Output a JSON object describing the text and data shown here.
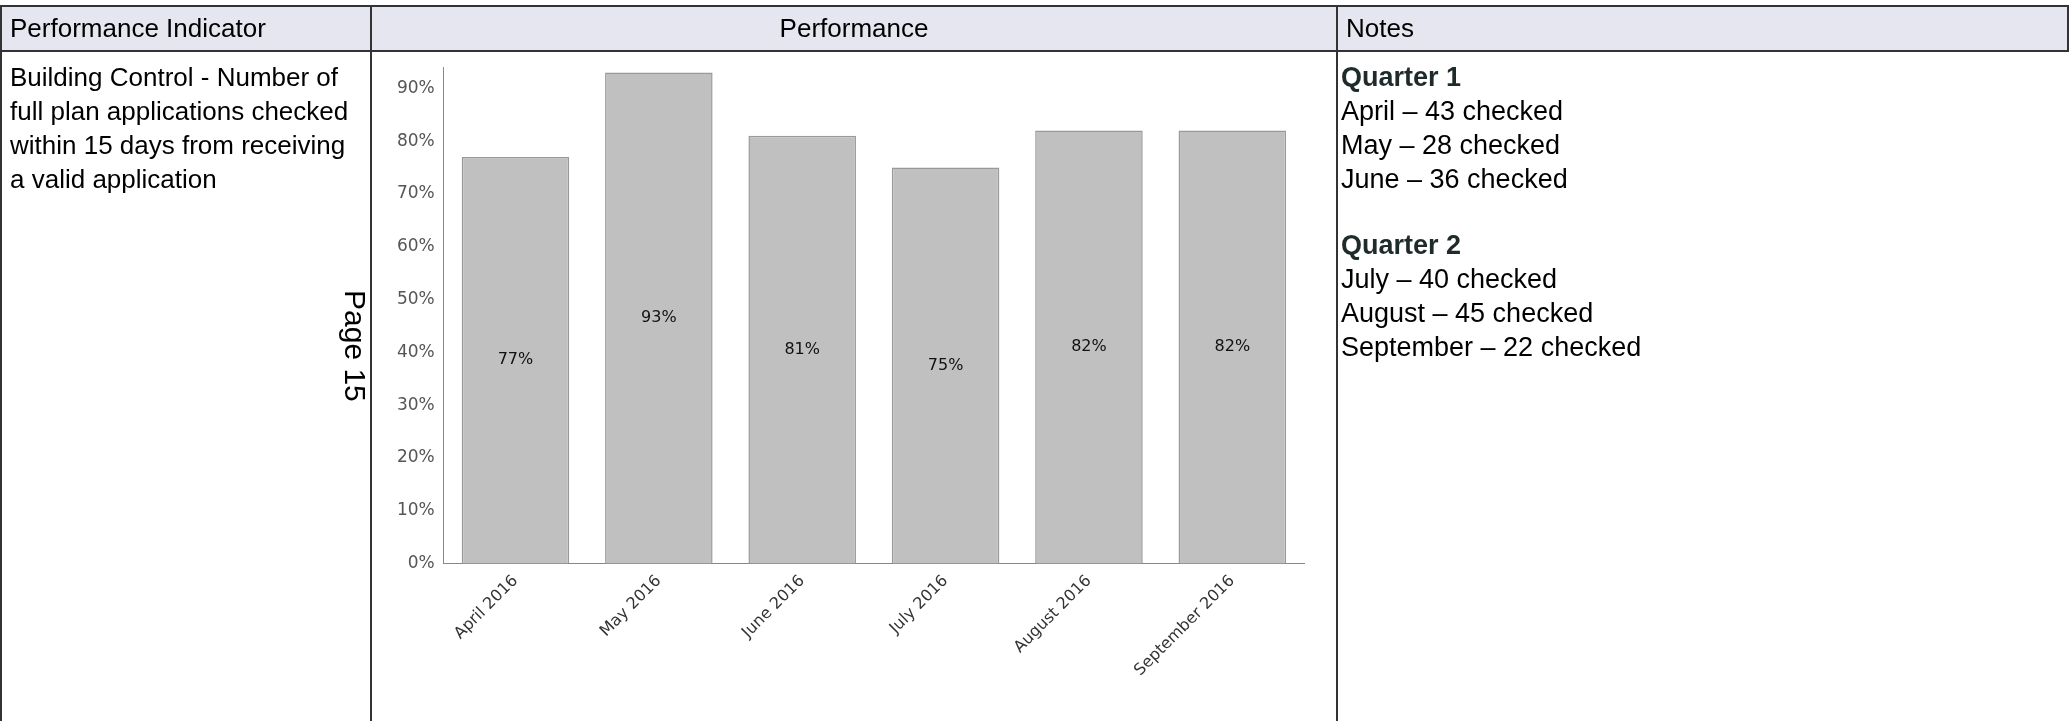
{
  "chart_data": {
    "type": "bar",
    "categories": [
      "April 2016",
      "May 2016",
      "June 2016",
      "July 2016",
      "August 2016",
      "September 2016"
    ],
    "values": [
      77,
      93,
      81,
      75,
      82,
      82
    ],
    "color": "#c0c0c0",
    "ylim": [
      0,
      94
    ],
    "yticks": [
      {
        "value": 0,
        "label": "0%"
      },
      {
        "value": 10,
        "label": "10%"
      },
      {
        "value": 20,
        "label": "20%"
      },
      {
        "value": 30,
        "label": "30%"
      },
      {
        "value": 40,
        "label": "40%"
      },
      {
        "value": 50,
        "label": "50%"
      },
      {
        "value": 60,
        "label": "60%"
      },
      {
        "value": 70,
        "label": "70%"
      },
      {
        "value": 80,
        "label": "80%"
      },
      {
        "value": 90,
        "label": "90%"
      }
    ],
    "value_labels": [
      "77%",
      "93%",
      "81%",
      "75%",
      "82%",
      "82%"
    ],
    "grid": false,
    "legend": false,
    "annotations": [
      "Performance Indicator",
      "Performance",
      "Notes",
      "Building Control - Number of full plan applications checked within 15 days from receiving a valid application",
      "Quarter 1",
      "April – 43 checked",
      "May – 28 checked",
      "June – 36 checked",
      "Quarter 2",
      "July – 40 checked",
      "August – 45 checked",
      "September – 22 checked",
      "Page 15"
    ]
  }
}
